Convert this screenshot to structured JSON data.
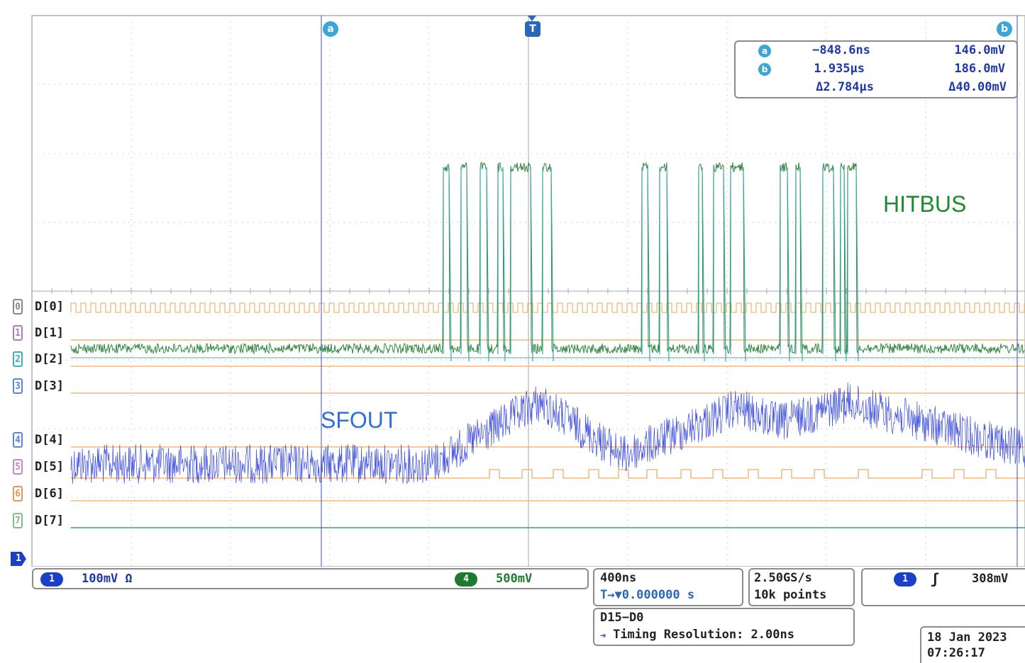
{
  "labels": {
    "hitbus": "HITBUS",
    "sfout": "SFOUT"
  },
  "cursors": {
    "a": {
      "tag": "a",
      "time": "−848.6ns",
      "volt": "146.0mV"
    },
    "b": {
      "tag": "b",
      "time": "1.935µs",
      "volt": "186.0mV"
    },
    "delta": {
      "time": "Δ2.784µs",
      "volt": "Δ40.00mV"
    },
    "trigger_tag": "T"
  },
  "digital_channels": [
    {
      "name": "D[0]",
      "marker": "0"
    },
    {
      "name": "D[1]",
      "marker": "1"
    },
    {
      "name": "D[2]",
      "marker": "2"
    },
    {
      "name": "D[3]",
      "marker": "3"
    },
    {
      "name": "D[4]",
      "marker": "4"
    },
    {
      "name": "D[5]",
      "marker": "5"
    },
    {
      "name": "D[6]",
      "marker": "6"
    },
    {
      "name": "D[7]",
      "marker": "7"
    }
  ],
  "status_bar": {
    "ch1_badge": "1",
    "ch1_scale": "100mV Ω",
    "ch4_badge": "4",
    "ch4_scale": "500mV",
    "timebase": "400ns",
    "position": "T→▼0.000000 s",
    "sample_rate": "2.50GS/s",
    "record_length": "10k points",
    "trigger_badge": "1",
    "trigger_slope": "ʃ",
    "trigger_level": "308mV",
    "digital_group": "D15−D0",
    "timing_resolution": "Timing Resolution: 2.00ns",
    "date": "18 Jan  2023",
    "time": "07:26:17"
  },
  "colors": {
    "ch1": "#1c2fd6",
    "ch4": "#1e7a2e",
    "digital": "#f0b878",
    "cursor": "#3b4fc7",
    "grid": "#c8c8c8"
  }
}
